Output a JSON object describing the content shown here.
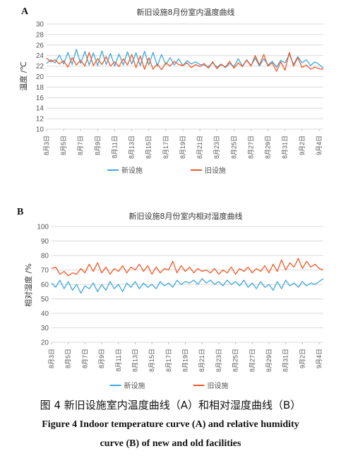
{
  "chart_data": [
    {
      "type": "line",
      "panel_label": "A",
      "title": "新旧设施8月份室内温度曲线",
      "ylabel": "温度 /℃",
      "xlabel": "",
      "ylim": [
        10,
        30
      ],
      "yticks": [
        10,
        12,
        14,
        16,
        18,
        20,
        22,
        24,
        26,
        28,
        30
      ],
      "xlim": [
        3,
        35.5
      ],
      "grid": true,
      "legend_position": "bottom",
      "x_ticks": [
        {
          "x": 3,
          "label": "8月3日"
        },
        {
          "x": 5,
          "label": "8月5日"
        },
        {
          "x": 7,
          "label": "8月7日"
        },
        {
          "x": 9,
          "label": "8月9日"
        },
        {
          "x": 11,
          "label": "8月11日"
        },
        {
          "x": 13,
          "label": "8月13日"
        },
        {
          "x": 15,
          "label": "8月15日"
        },
        {
          "x": 17,
          "label": "8月17日"
        },
        {
          "x": 19,
          "label": "8月19日"
        },
        {
          "x": 21,
          "label": "8月21日"
        },
        {
          "x": 23,
          "label": "8月23日"
        },
        {
          "x": 25,
          "label": "8月25日"
        },
        {
          "x": 27,
          "label": "8月27日"
        },
        {
          "x": 29,
          "label": "8月29日"
        },
        {
          "x": 31,
          "label": "8月31日"
        },
        {
          "x": 33,
          "label": "9月2日"
        },
        {
          "x": 35,
          "label": "9月4日"
        }
      ],
      "series": [
        {
          "name": "新设施",
          "color": "#3fa7dc",
          "x": [
            3,
            3.5,
            4,
            4.5,
            5,
            5.5,
            6,
            6.5,
            7,
            7.5,
            8,
            8.5,
            9,
            9.5,
            10,
            10.5,
            11,
            11.5,
            12,
            12.5,
            13,
            13.5,
            14,
            14.5,
            15,
            15.5,
            16,
            16.5,
            17,
            17.5,
            18,
            18.5,
            19,
            19.5,
            20,
            20.5,
            21,
            21.5,
            22,
            22.5,
            23,
            23.5,
            24,
            24.5,
            25,
            25.5,
            26,
            26.5,
            27,
            27.5,
            28,
            28.5,
            29,
            29.5,
            30,
            30.5,
            31,
            31.5,
            32,
            32.5,
            33,
            33.5,
            34,
            34.5,
            35,
            35.5
          ],
          "values": [
            22.5,
            23.2,
            22.6,
            24.1,
            22.4,
            24.6,
            22.3,
            25.2,
            22.5,
            24.8,
            22.2,
            24.5,
            22.1,
            24.9,
            22.3,
            24.4,
            22.0,
            24.3,
            22.2,
            24.7,
            22.4,
            24.5,
            22.1,
            24.8,
            22.2,
            24.6,
            22.0,
            24.2,
            22.3,
            23.6,
            22.2,
            23.4,
            22.1,
            23.0,
            22.4,
            22.8,
            22.3,
            22.2,
            21.9,
            22.6,
            21.8,
            22.4,
            21.7,
            22.5,
            21.9,
            23.4,
            22.0,
            23.2,
            22.1,
            23.5,
            22.0,
            23.4,
            22.2,
            22.9,
            21.8,
            23.1,
            22.6,
            24.2,
            22.3,
            23.8,
            22.6,
            23.2,
            22.1,
            22.8,
            22.3,
            21.6
          ]
        },
        {
          "name": "旧设施",
          "color": "#ef5a28",
          "x": [
            3,
            3.5,
            4,
            4.5,
            5,
            5.5,
            6,
            6.5,
            7,
            7.5,
            8,
            8.5,
            9,
            9.5,
            10,
            10.5,
            11,
            11.5,
            12,
            12.5,
            13,
            13.5,
            14,
            14.5,
            15,
            15.5,
            16,
            16.5,
            17,
            17.5,
            18,
            18.5,
            19,
            19.5,
            20,
            20.5,
            21,
            21.5,
            22,
            22.5,
            23,
            23.5,
            24,
            24.5,
            25,
            25.5,
            26,
            26.5,
            27,
            27.5,
            28,
            28.5,
            29,
            29.5,
            30,
            30.5,
            31,
            31.5,
            32,
            32.5,
            33,
            33.5,
            34,
            34.5,
            35,
            35.5
          ],
          "values": [
            23.5,
            22.8,
            23.2,
            22.4,
            23.0,
            21.8,
            23.6,
            22.2,
            23.1,
            22.0,
            24.6,
            22.1,
            23.4,
            22.3,
            23.8,
            22.0,
            22.8,
            21.9,
            23.4,
            22.2,
            24.2,
            21.7,
            23.9,
            21.4,
            23.6,
            21.4,
            22.4,
            21.3,
            22.6,
            22.0,
            22.9,
            22.3,
            22.1,
            22.6,
            21.7,
            22.3,
            21.9,
            22.5,
            21.6,
            22.8,
            21.5,
            22.3,
            21.8,
            22.9,
            21.6,
            22.6,
            21.9,
            23.1,
            22.0,
            24.0,
            22.2,
            24.2,
            22.0,
            22.6,
            21.0,
            22.8,
            21.2,
            24.6,
            22.0,
            23.6,
            21.7,
            22.2,
            21.4,
            21.8,
            21.5,
            21.4
          ]
        }
      ]
    },
    {
      "type": "line",
      "panel_label": "B",
      "title": "新旧设施8月份室内相对湿度曲线",
      "ylabel": "相对湿度 /%",
      "xlabel": "",
      "ylim": [
        20,
        100
      ],
      "yticks": [
        20,
        30,
        40,
        50,
        60,
        70,
        80,
        90,
        100
      ],
      "xlim": [
        3,
        35.5
      ],
      "grid": true,
      "legend_position": "bottom",
      "x_ticks": [
        {
          "x": 3,
          "label": "8月3日"
        },
        {
          "x": 5,
          "label": "8月5日"
        },
        {
          "x": 7,
          "label": "8月7日"
        },
        {
          "x": 9,
          "label": "8月9日"
        },
        {
          "x": 11,
          "label": "8月11日"
        },
        {
          "x": 13,
          "label": "8月13日"
        },
        {
          "x": 15,
          "label": "8月15日"
        },
        {
          "x": 17,
          "label": "8月17日"
        },
        {
          "x": 19,
          "label": "8月19日"
        },
        {
          "x": 21,
          "label": "8月21日"
        },
        {
          "x": 23,
          "label": "8月23日"
        },
        {
          "x": 25,
          "label": "8月25日"
        },
        {
          "x": 27,
          "label": "8月27日"
        },
        {
          "x": 29,
          "label": "8月29日"
        },
        {
          "x": 31,
          "label": "8月31日"
        },
        {
          "x": 33,
          "label": "9月2日"
        },
        {
          "x": 35,
          "label": "9月4日"
        }
      ],
      "series": [
        {
          "name": "新设施",
          "color": "#3fa7dc",
          "x": [
            3,
            3.5,
            4,
            4.5,
            5,
            5.5,
            6,
            6.5,
            7,
            7.5,
            8,
            8.5,
            9,
            9.5,
            10,
            10.5,
            11,
            11.5,
            12,
            12.5,
            13,
            13.5,
            14,
            14.5,
            15,
            15.5,
            16,
            16.5,
            17,
            17.5,
            18,
            18.5,
            19,
            19.5,
            20,
            20.5,
            21,
            21.5,
            22,
            22.5,
            23,
            23.5,
            24,
            24.5,
            25,
            25.5,
            26,
            26.5,
            27,
            27.5,
            28,
            28.5,
            29,
            29.5,
            30,
            30.5,
            31,
            31.5,
            32,
            32.5,
            33,
            33.5,
            34,
            34.5,
            35,
            35.5
          ],
          "values": [
            61,
            58,
            63,
            57,
            62,
            56,
            60,
            54,
            59,
            57,
            61,
            55,
            60,
            56,
            62,
            57,
            60,
            55,
            61,
            58,
            62,
            57,
            61,
            58,
            60,
            57,
            62,
            59,
            61,
            58,
            63,
            60,
            62,
            61,
            63,
            60,
            64,
            61,
            63,
            60,
            62,
            59,
            63,
            60,
            62,
            59,
            63,
            58,
            61,
            57,
            62,
            58,
            60,
            56,
            62,
            57,
            63,
            59,
            61,
            58,
            62,
            59,
            61,
            60,
            62,
            64
          ]
        },
        {
          "name": "旧设施",
          "color": "#ef5a28",
          "x": [
            3,
            3.5,
            4,
            4.5,
            5,
            5.5,
            6,
            6.5,
            7,
            7.5,
            8,
            8.5,
            9,
            9.5,
            10,
            10.5,
            11,
            11.5,
            12,
            12.5,
            13,
            13.5,
            14,
            14.5,
            15,
            15.5,
            16,
            16.5,
            17,
            17.5,
            18,
            18.5,
            19,
            19.5,
            20,
            20.5,
            21,
            21.5,
            22,
            22.5,
            23,
            23.5,
            24,
            24.5,
            25,
            25.5,
            26,
            26.5,
            27,
            27.5,
            28,
            28.5,
            29,
            29.5,
            30,
            30.5,
            31,
            31.5,
            32,
            32.5,
            33,
            33.5,
            34,
            34.5,
            35,
            35.5
          ],
          "values": [
            71,
            72,
            67,
            69,
            66,
            68,
            67,
            71,
            68,
            74,
            69,
            75,
            68,
            72,
            67,
            71,
            69,
            73,
            68,
            72,
            70,
            74,
            69,
            73,
            67,
            72,
            68,
            71,
            70,
            76,
            68,
            73,
            69,
            72,
            68,
            71,
            69,
            70,
            68,
            71,
            67,
            70,
            68,
            72,
            67,
            71,
            69,
            72,
            68,
            71,
            69,
            73,
            68,
            74,
            69,
            77,
            70,
            75,
            72,
            78,
            71,
            76,
            72,
            74,
            71,
            70
          ]
        }
      ]
    }
  ],
  "captions": {
    "zh": "图 4  新旧设施室内温度曲线（A）和相对湿度曲线（B）",
    "en1": "Figure 4  Indoor temperature curve (A) and relative humidity",
    "en2": "curve (B) of new and old facilities"
  }
}
